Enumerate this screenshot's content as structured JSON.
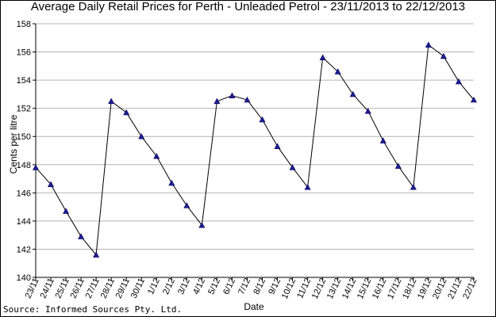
{
  "chart_data": {
    "type": "line",
    "title": "Average Daily Retail Prices for Perth - Unleaded Petrol - 23/11/2013 to 22/12/2013",
    "xlabel": "Date",
    "ylabel": "Cents per litre",
    "ylim": [
      140,
      158
    ],
    "yticks": [
      140,
      142,
      144,
      146,
      148,
      150,
      152,
      154,
      156,
      158
    ],
    "grid": "horizontal",
    "legend": "none",
    "categories": [
      "23/11",
      "24/11",
      "25/11",
      "26/11",
      "27/11",
      "28/11",
      "29/11",
      "30/11",
      "1/12",
      "2/12",
      "3/12",
      "4/12",
      "5/12",
      "6/12",
      "7/12",
      "8/12",
      "9/12",
      "10/12",
      "11/12",
      "12/12",
      "13/12",
      "14/12",
      "15/12",
      "16/12",
      "17/12",
      "18/12",
      "19/12",
      "20/12",
      "21/12",
      "22/12"
    ],
    "series": [
      {
        "values": [
          147.8,
          146.6,
          144.7,
          142.9,
          141.6,
          152.5,
          151.7,
          150.0,
          148.6,
          146.7,
          145.1,
          143.7,
          152.5,
          152.9,
          152.6,
          151.2,
          149.3,
          147.8,
          146.4,
          155.6,
          154.6,
          153.0,
          151.8,
          149.7,
          147.9,
          146.4,
          156.5,
          155.7,
          153.9,
          152.6
        ]
      }
    ],
    "colors": {
      "line": "#000000",
      "marker": "#1f1f8f",
      "grid": "#b4b4b4"
    }
  },
  "source_note": "Source: Informed Sources Pty. Ltd."
}
